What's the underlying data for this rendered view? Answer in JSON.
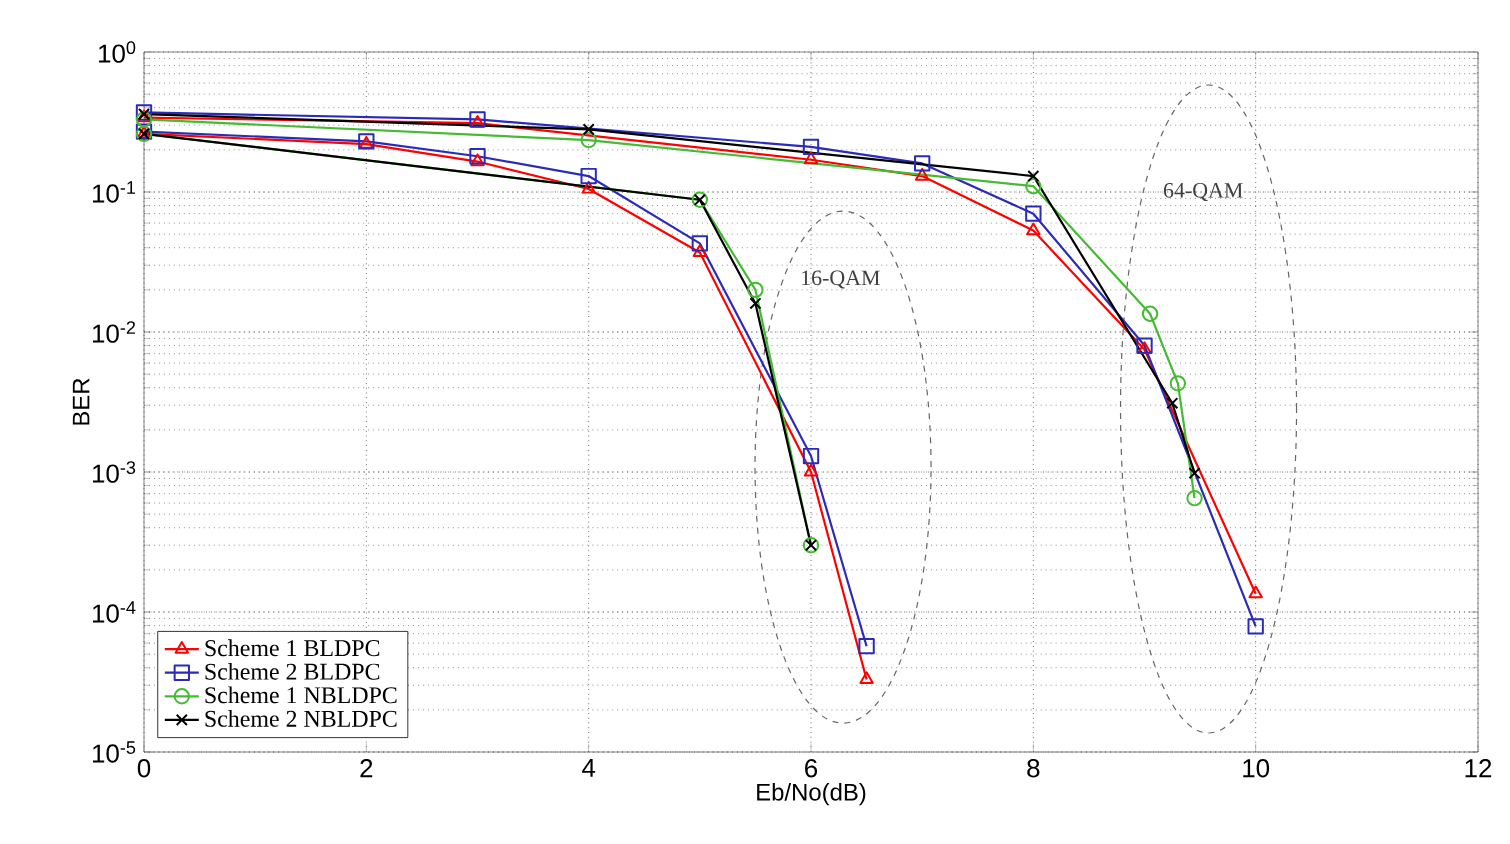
{
  "chart_data": {
    "type": "line",
    "xlabel": "Eb/No(dB)",
    "ylabel": "BER",
    "log": "y",
    "xlim": [
      0,
      12
    ],
    "xticks": [
      0,
      2,
      4,
      6,
      8,
      10,
      12
    ],
    "ylim": [
      1e-05,
      1
    ],
    "yticks": [
      {
        "value": 1e-05,
        "label": "10$^{-5}$"
      },
      {
        "value": 0.0001,
        "label": "10$^{-4}$"
      },
      {
        "value": 0.001,
        "label": "10$^{-3}$"
      },
      {
        "value": 0.01,
        "label": "10$^{-2}$"
      },
      {
        "value": 0.1,
        "label": "10$^{-1}$"
      },
      {
        "value": 1,
        "label": "10$^{0}$"
      }
    ],
    "grid": true,
    "legend": "bottom left",
    "line_style": "solid",
    "annotations": [
      "16-QAM",
      "64-QAM"
    ],
    "series": [
      {
        "name": "Scheme 1 BLDPC",
        "color": "#ff0000",
        "marker": "triangle",
        "x": [
          0,
          2,
          3,
          4,
          5,
          6,
          6.5
        ],
        "values": [
          0.26,
          0.22,
          0.165,
          0.105,
          0.037,
          0.001,
          3.3e-05
        ]
      },
      {
        "name": "Scheme 2 BLDPC",
        "color": "#2b2bb8",
        "marker": "square",
        "x": [
          0,
          2,
          3,
          4,
          5,
          6,
          6.5
        ],
        "values": [
          0.27,
          0.23,
          0.18,
          0.13,
          0.043,
          0.0013,
          5.7e-05
        ]
      },
      {
        "name": "Scheme 1 NBLDPC",
        "color": "#44bb33",
        "marker": "circle",
        "x": [
          0,
          5,
          5.5,
          6
        ],
        "values": [
          0.26,
          0.088,
          0.02,
          0.0003
        ]
      },
      {
        "name": "Scheme 2 NBLDPC",
        "color": "#000000",
        "marker": "cross",
        "x": [
          0,
          5,
          5.5,
          6
        ],
        "values": [
          0.26,
          0.088,
          0.016,
          0.0003
        ]
      },
      {
        "color": "#ff0000",
        "marker": "triangle",
        "x": [
          0,
          3,
          6,
          7,
          8,
          9,
          10
        ],
        "values": [
          0.34,
          0.31,
          0.17,
          0.13,
          0.053,
          0.0075,
          0.000135
        ]
      },
      {
        "color": "#2b2bb8",
        "marker": "square",
        "x": [
          0,
          3,
          6,
          7,
          8,
          9,
          10
        ],
        "values": [
          0.37,
          0.33,
          0.21,
          0.16,
          0.07,
          0.008,
          7.9e-05
        ]
      },
      {
        "color": "#44bb33",
        "marker": "circle",
        "x": [
          0,
          4,
          8,
          9.05,
          9.3,
          9.45
        ],
        "values": [
          0.33,
          0.235,
          0.11,
          0.0135,
          0.0043,
          0.00065
        ]
      },
      {
        "color": "#000000",
        "marker": "cross",
        "x": [
          0,
          4,
          8,
          9.25,
          9.45
        ],
        "values": [
          0.36,
          0.28,
          0.13,
          0.0031,
          0.00098
        ]
      }
    ]
  }
}
